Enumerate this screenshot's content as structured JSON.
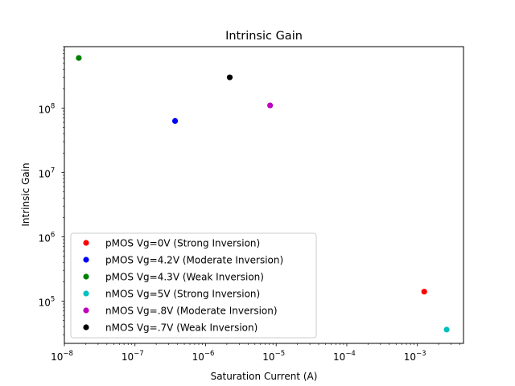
{
  "chart_data": {
    "type": "scatter",
    "title": "Intrinsic Gain",
    "xlabel": "Saturation Current (A)",
    "ylabel": "Intrinsic Gain",
    "xscale": "log",
    "yscale": "log",
    "xlim": [
      1e-08,
      0.0045
    ],
    "ylim": [
      22000,
      900000000
    ],
    "xticks": [
      {
        "value": 1e-08,
        "base": "10",
        "exp": "−8"
      },
      {
        "value": 1e-07,
        "base": "10",
        "exp": "−7"
      },
      {
        "value": 1e-06,
        "base": "10",
        "exp": "−6"
      },
      {
        "value": 1e-05,
        "base": "10",
        "exp": "−5"
      },
      {
        "value": 0.0001,
        "base": "10",
        "exp": "−4"
      },
      {
        "value": 0.001,
        "base": "10",
        "exp": "−3"
      }
    ],
    "yticks": [
      {
        "value": 100000.0,
        "base": "10",
        "exp": "5"
      },
      {
        "value": 1000000.0,
        "base": "10",
        "exp": "6"
      },
      {
        "value": 10000000.0,
        "base": "10",
        "exp": "7"
      },
      {
        "value": 100000000.0,
        "base": "10",
        "exp": "8"
      }
    ],
    "grid": false,
    "legend_position": "lower-left",
    "series": [
      {
        "name": "pMOS Vg=0V (Strong Inversion)",
        "color": "#ff0000",
        "x": [
          0.00125
        ],
        "y": [
          140000
        ]
      },
      {
        "name": "pMOS Vg=4.2V (Moderate Inversion)",
        "color": "#0000ff",
        "x": [
          3.7e-07
        ],
        "y": [
          63000000
        ]
      },
      {
        "name": "pMOS Vg=4.3V (Weak Inversion)",
        "color": "#008000",
        "x": [
          1.6e-08
        ],
        "y": [
          600000000
        ]
      },
      {
        "name": "nMOS Vg=5V (Strong Inversion)",
        "color": "#00bfbf",
        "x": [
          0.0026
        ],
        "y": [
          36000
        ]
      },
      {
        "name": "nMOS Vg=.8V (Moderate Inversion)",
        "color": "#bf00bf",
        "x": [
          8.2e-06
        ],
        "y": [
          110000000
        ]
      },
      {
        "name": "nMOS Vg=.7V (Weak Inversion)",
        "color": "#000000",
        "x": [
          2.2e-06
        ],
        "y": [
          300000000
        ]
      }
    ]
  }
}
